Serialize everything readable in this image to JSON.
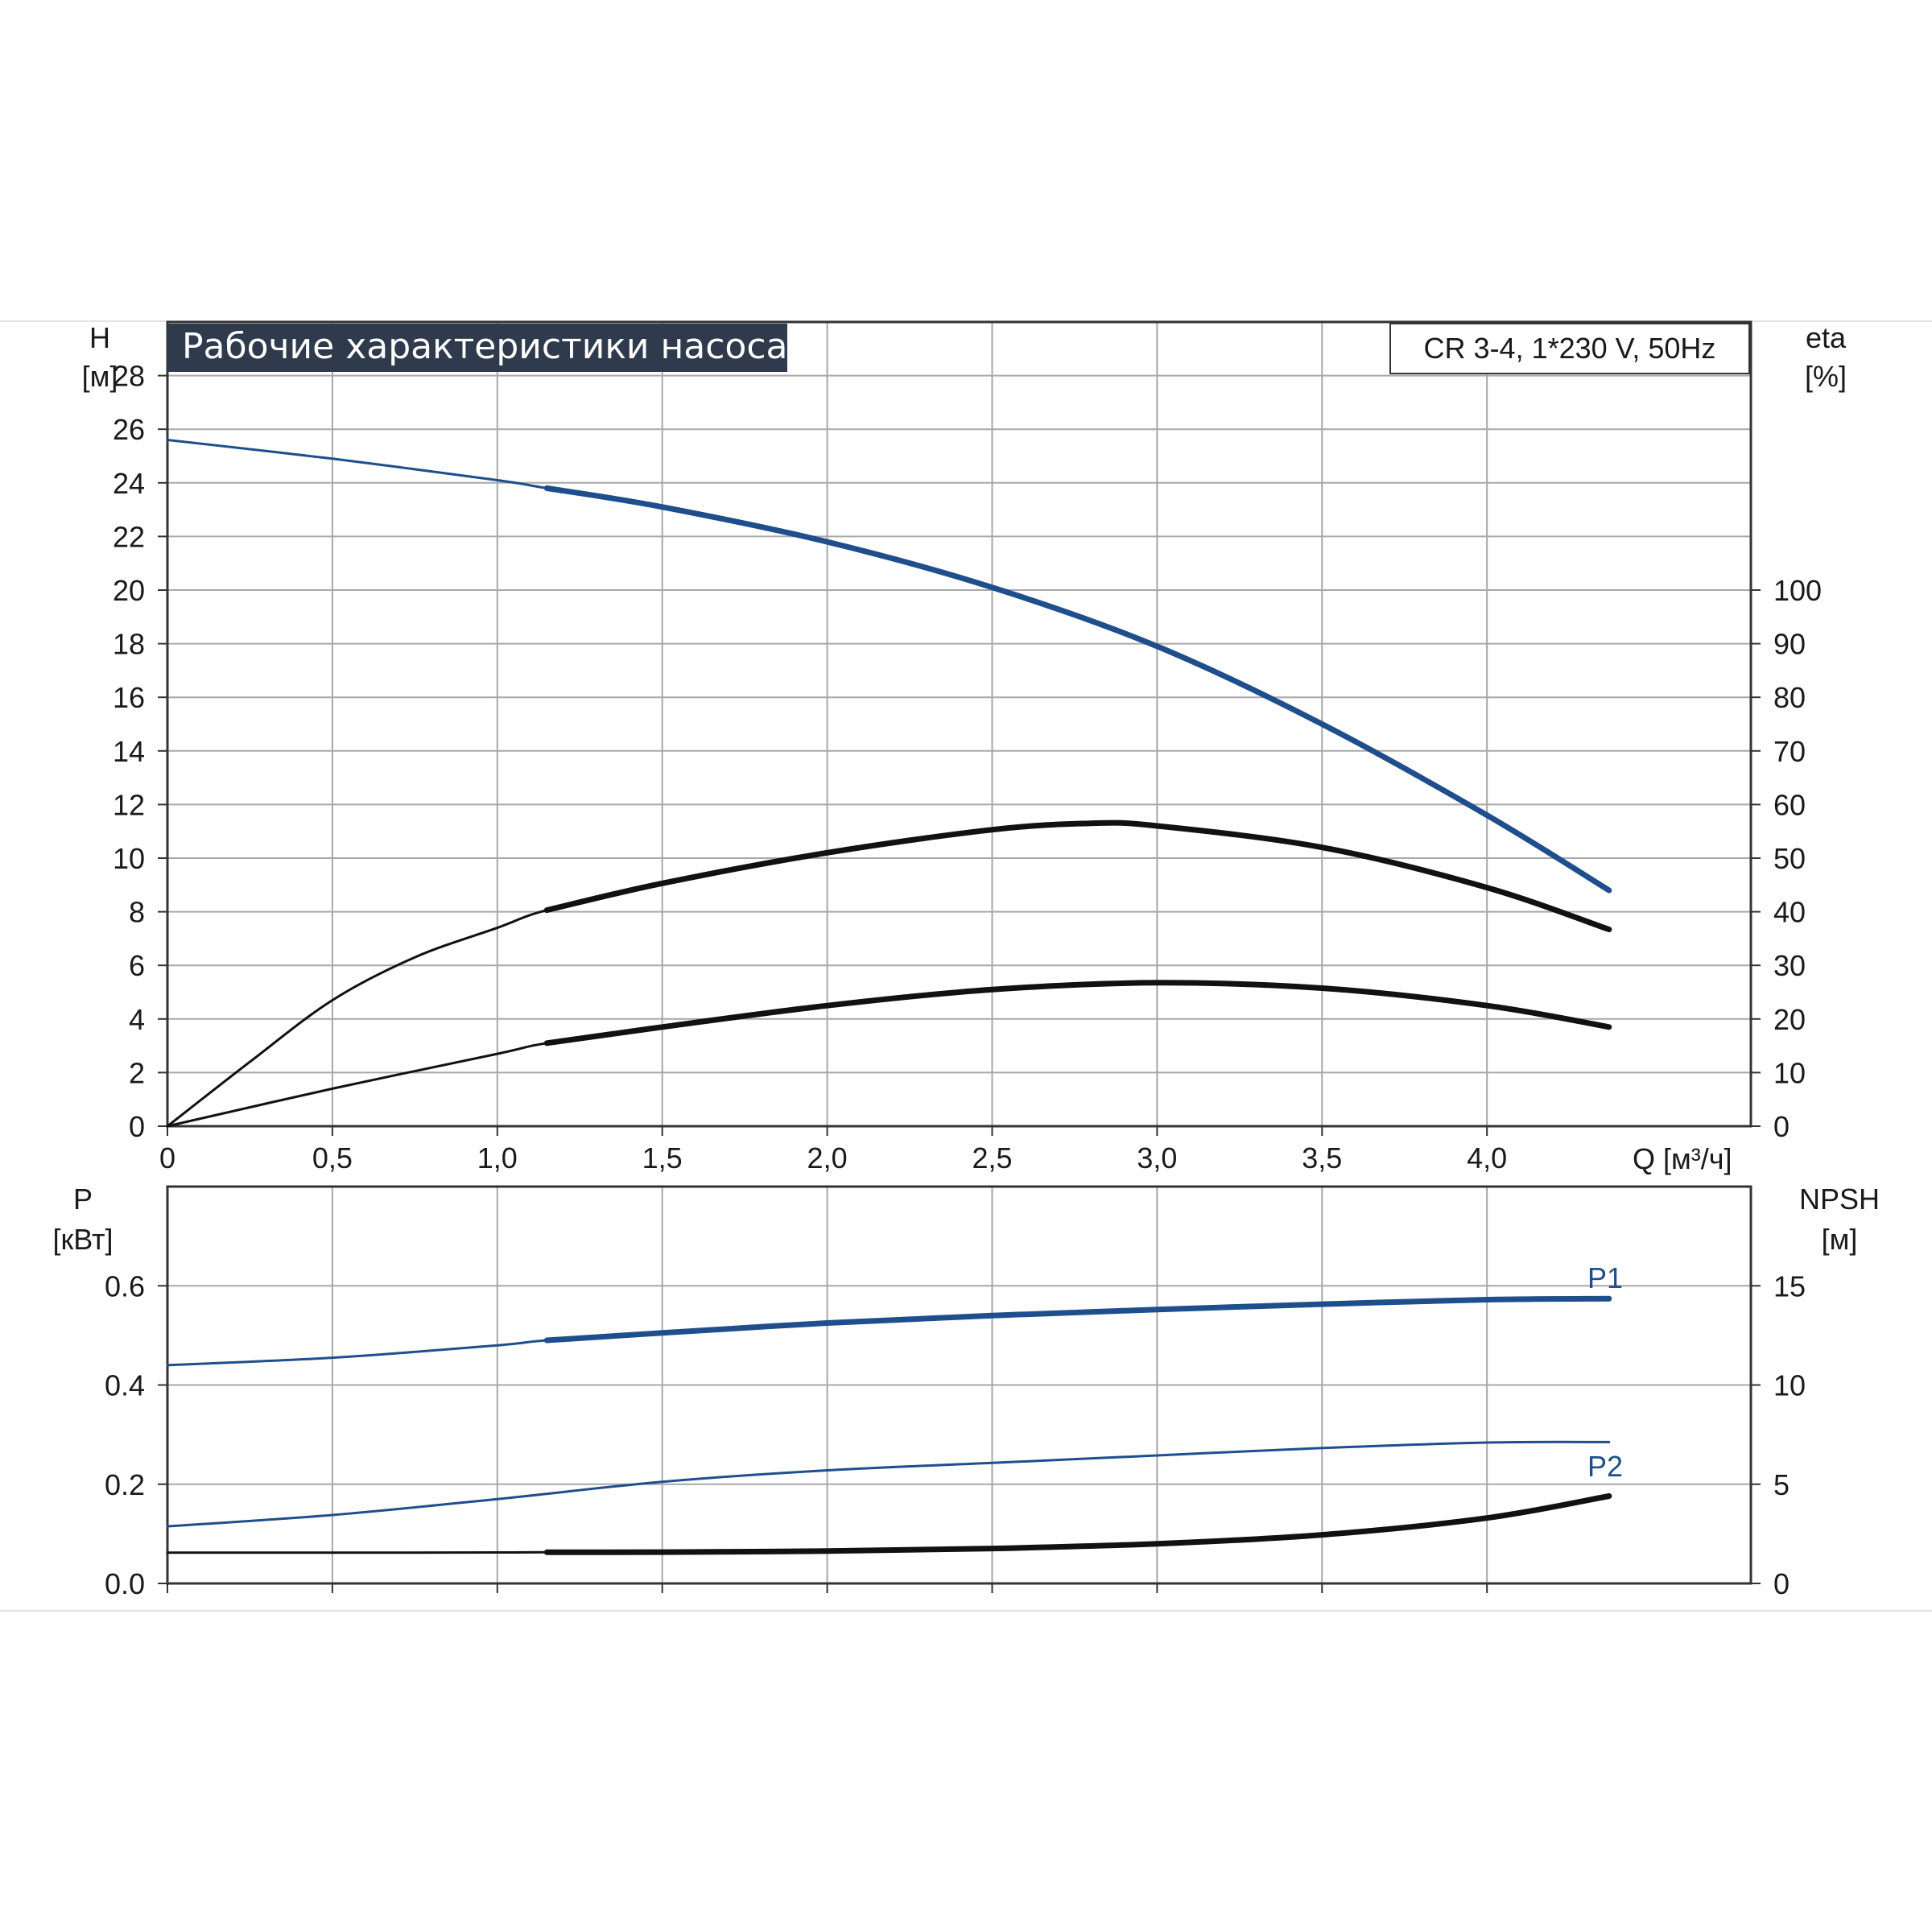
{
  "colors": {
    "blue": "#1f4e8c",
    "black": "#111111",
    "grid": "#a8a8a8",
    "title_bg": "#2f3a4c",
    "frame": "#333333"
  },
  "title": "Рабочие характеристики насоса",
  "model_label": "CR 3-4, 1*230 V, 50Hz",
  "chart_data": [
    {
      "type": "line",
      "panel": "top",
      "xlabel": "Q [м³/ч]",
      "xlim": [
        0,
        4.8
      ],
      "xticks": [
        0,
        0.5,
        1.0,
        1.5,
        2.0,
        2.5,
        3.0,
        3.5,
        4.0
      ],
      "xtick_labels": [
        "0",
        "0,5",
        "1,0",
        "1,5",
        "2,0",
        "2,5",
        "3,0",
        "3,5",
        "4,0"
      ],
      "y_left": {
        "label": "H",
        "unit": "[м]",
        "lim": [
          0,
          30
        ],
        "ticks": [
          0,
          2,
          4,
          6,
          8,
          10,
          12,
          14,
          16,
          18,
          20,
          22,
          24,
          26,
          28
        ]
      },
      "y_right": {
        "label": "eta",
        "unit": "[%]",
        "lim": [
          0,
          150
        ],
        "ticks": [
          0,
          10,
          20,
          30,
          40,
          50,
          60,
          70,
          80,
          90,
          100
        ]
      },
      "grid": true,
      "series": [
        {
          "axis": "left",
          "color": "blue",
          "x": [
            0,
            0.5,
            1.0,
            1.15,
            1.5,
            2.0,
            2.5,
            3.0,
            3.5,
            4.0,
            4.37
          ],
          "y": [
            25.6,
            24.9,
            24.1,
            23.8,
            23.1,
            21.8,
            20.1,
            17.9,
            15.0,
            11.6,
            8.8
          ],
          "bold_from": 1.15
        },
        {
          "axis": "right",
          "color": "black",
          "x": [
            0,
            0.25,
            0.5,
            0.75,
            1.0,
            1.15,
            1.5,
            2.0,
            2.5,
            2.8,
            3.0,
            3.5,
            4.0,
            4.37
          ],
          "y": [
            0,
            12,
            23.5,
            31.5,
            37,
            40.3,
            45.3,
            51,
            55.3,
            56.5,
            56,
            52,
            44.5,
            36.7
          ],
          "bold_from": 1.15
        },
        {
          "axis": "left",
          "color": "black",
          "x": [
            0,
            0.5,
            1.0,
            1.15,
            1.5,
            2.0,
            2.5,
            3.0,
            3.5,
            4.0,
            4.37
          ],
          "y": [
            0,
            1.4,
            2.7,
            3.1,
            3.7,
            4.5,
            5.1,
            5.35,
            5.15,
            4.5,
            3.7
          ],
          "bold_from": 1.15
        }
      ]
    },
    {
      "type": "line",
      "panel": "bottom",
      "xlim": [
        0,
        4.8
      ],
      "xticks": [
        0,
        0.5,
        1.0,
        1.5,
        2.0,
        2.5,
        3.0,
        3.5,
        4.0
      ],
      "y_left": {
        "label": "P",
        "unit": "[кВт]",
        "lim": [
          0,
          0.8
        ],
        "ticks": [
          0.0,
          0.2,
          0.4,
          0.6
        ],
        "tick_labels": [
          "0.0",
          "0.2",
          "0.4",
          "0.6"
        ]
      },
      "y_right": {
        "label": "NPSH",
        "unit": "[м]",
        "lim": [
          0,
          20
        ],
        "ticks": [
          0,
          5,
          10,
          15
        ]
      },
      "grid": true,
      "series": [
        {
          "name": "P1",
          "axis": "left",
          "color": "blue",
          "x": [
            0,
            0.5,
            1.0,
            1.15,
            1.5,
            2.0,
            2.5,
            3.0,
            3.5,
            4.0,
            4.37
          ],
          "y": [
            0.44,
            0.455,
            0.48,
            0.49,
            0.505,
            0.525,
            0.54,
            0.552,
            0.563,
            0.572,
            0.574
          ],
          "bold_from": 1.15
        },
        {
          "name": "P2",
          "axis": "left",
          "color": "blue",
          "x": [
            0,
            0.5,
            1.0,
            1.5,
            2.0,
            2.5,
            3.0,
            3.5,
            4.0,
            4.37
          ],
          "y": [
            0.115,
            0.138,
            0.17,
            0.205,
            0.228,
            0.243,
            0.258,
            0.273,
            0.284,
            0.285
          ],
          "bold_from": 5
        },
        {
          "axis": "right",
          "color": "black",
          "x": [
            0,
            0.5,
            1.0,
            1.15,
            1.5,
            2.0,
            2.5,
            3.0,
            3.5,
            4.0,
            4.37
          ],
          "y": [
            1.55,
            1.55,
            1.56,
            1.57,
            1.58,
            1.63,
            1.76,
            2.0,
            2.45,
            3.3,
            4.4
          ],
          "bold_from": 1.15
        }
      ]
    }
  ],
  "series_labels": {
    "p1": "P1",
    "p2": "P2"
  }
}
